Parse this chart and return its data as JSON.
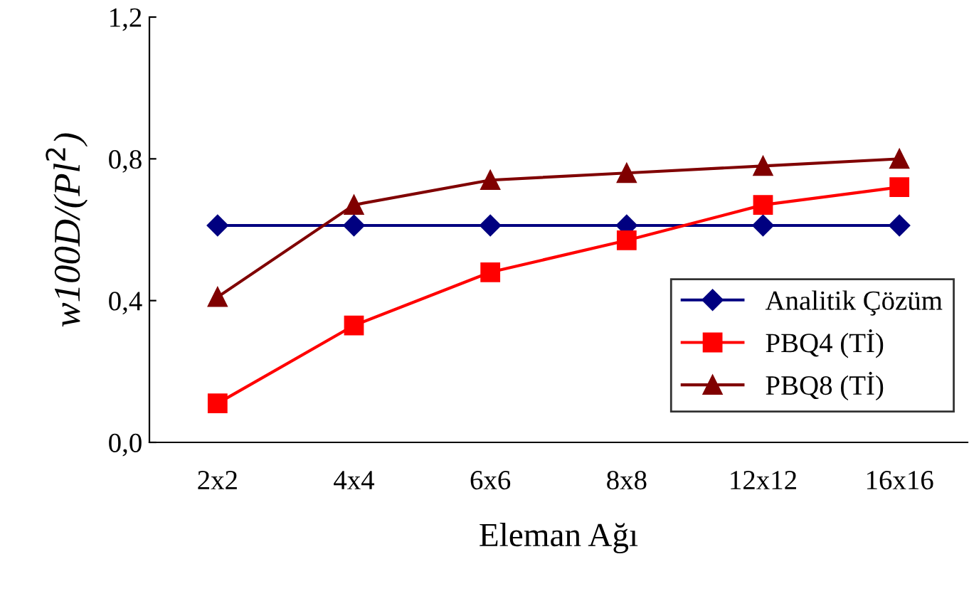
{
  "chart_data": {
    "type": "line",
    "xlabel": "Eleman Ağı",
    "ylabel": "w100D/(Pl$^{2}$)",
    "categories": [
      "2x2",
      "4x4",
      "6x6",
      "8x8",
      "12x12",
      "16x16"
    ],
    "series": [
      {
        "name": "Analitik Çözüm",
        "color": "#000080",
        "marker": "diamond",
        "values": [
          0.612,
          0.612,
          0.612,
          0.612,
          0.612,
          0.612
        ]
      },
      {
        "name": "PBQ4 (Tİ)",
        "color": "#ff0000",
        "marker": "square",
        "values": [
          0.11,
          0.33,
          0.48,
          0.57,
          0.67,
          0.72
        ]
      },
      {
        "name": "PBQ8 (Tİ)",
        "color": "#800000",
        "marker": "triangle",
        "values": [
          0.41,
          0.67,
          0.74,
          0.76,
          0.78,
          0.8
        ]
      }
    ],
    "ylim": [
      0,
      1.2
    ],
    "yticks": [
      {
        "value": 0,
        "label": "0,0"
      },
      {
        "value": 0.4,
        "label": "0,4"
      },
      {
        "value": 0.8,
        "label": "0,8"
      },
      {
        "value": 1.2,
        "label": "1,2"
      }
    ],
    "grid": false,
    "legend": "bottom right"
  }
}
